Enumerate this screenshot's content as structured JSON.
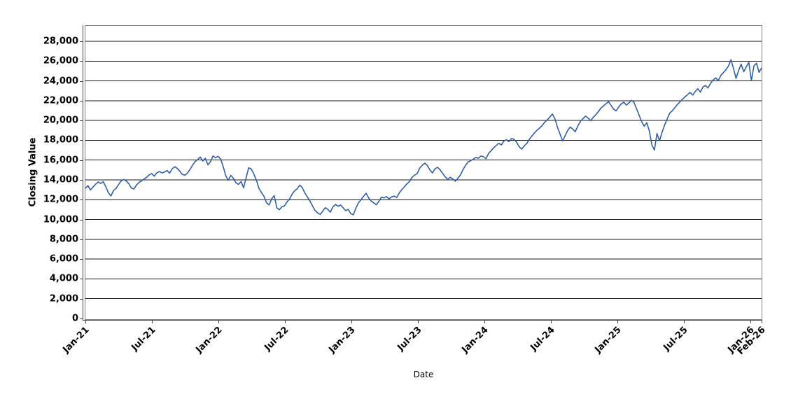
{
  "labels": {
    "x_axis_title": "Date",
    "y_axis_title": "Closing Value"
  },
  "chart_data": {
    "type": "line",
    "title": "",
    "xlabel": "Date",
    "ylabel": "Closing Value",
    "legend": "none",
    "grid": "horizontal",
    "line_color": "#2e5fa6",
    "grid_color": "#1a1a1a",
    "axis_color": "#444444",
    "ylim": [
      0,
      29550
    ],
    "x_range_months": [
      "Jan-21",
      "Feb-26"
    ],
    "x_total_months": 61,
    "y_ticks": [
      {
        "value": 0,
        "label": "0"
      },
      {
        "value": 2000,
        "label": "2,000"
      },
      {
        "value": 4000,
        "label": "4,000"
      },
      {
        "value": 6000,
        "label": "6,000"
      },
      {
        "value": 8000,
        "label": "8,000"
      },
      {
        "value": 10000,
        "label": "10,000"
      },
      {
        "value": 12000,
        "label": "12,000"
      },
      {
        "value": 14000,
        "label": "14,000"
      },
      {
        "value": 16000,
        "label": "16,000"
      },
      {
        "value": 18000,
        "label": "18,000"
      },
      {
        "value": 20000,
        "label": "20,000"
      },
      {
        "value": 22000,
        "label": "22,000"
      },
      {
        "value": 24000,
        "label": "24,000"
      },
      {
        "value": 26000,
        "label": "26,000"
      },
      {
        "value": 28000,
        "label": "28,000"
      }
    ],
    "x_ticks": [
      {
        "month": 0,
        "label": "Jan-21"
      },
      {
        "month": 6,
        "label": "Jul-21"
      },
      {
        "month": 12,
        "label": "Jan-22"
      },
      {
        "month": 18,
        "label": "Jul-22"
      },
      {
        "month": 24,
        "label": "Jan-23"
      },
      {
        "month": 30,
        "label": "Jul-23"
      },
      {
        "month": 36,
        "label": "Jan-24"
      },
      {
        "month": 42,
        "label": "Jul-24"
      },
      {
        "month": 48,
        "label": "Jan-25"
      },
      {
        "month": 54,
        "label": "Jul-25"
      },
      {
        "month": 60,
        "label": "Jan-26"
      },
      {
        "month": 61,
        "label": "Feb-26"
      }
    ],
    "series": [
      {
        "name": "Closing Value",
        "sampling": "weekly",
        "values": [
          13150,
          13420,
          12980,
          13280,
          13560,
          13790,
          13640,
          13820,
          13310,
          12710,
          12380,
          12920,
          13140,
          13540,
          13880,
          14050,
          13900,
          13620,
          13180,
          13080,
          13470,
          13750,
          13900,
          14080,
          14270,
          14500,
          14640,
          14380,
          14720,
          14840,
          14700,
          14790,
          14950,
          14680,
          15100,
          15330,
          15160,
          14880,
          14550,
          14480,
          14690,
          15060,
          15480,
          15850,
          16050,
          16320,
          15900,
          16180,
          15520,
          15830,
          16420,
          16250,
          16380,
          16120,
          15350,
          14430,
          13960,
          14460,
          14170,
          13710,
          13550,
          13840,
          13200,
          14260,
          15220,
          15100,
          14600,
          13980,
          13160,
          12720,
          12340,
          11680,
          11470,
          12090,
          12410,
          11200,
          10980,
          11290,
          11360,
          11780,
          12060,
          12570,
          12900,
          13110,
          13480,
          13220,
          12680,
          12280,
          11870,
          11380,
          10920,
          10680,
          10520,
          10830,
          11190,
          11030,
          10740,
          11280,
          11520,
          11340,
          11460,
          11190,
          10880,
          11020,
          10600,
          10470,
          11150,
          11680,
          11990,
          12340,
          12650,
          12190,
          11860,
          11690,
          11480,
          11830,
          12260,
          12180,
          12310,
          12090,
          12280,
          12360,
          12220,
          12690,
          13010,
          13300,
          13600,
          13830,
          14260,
          14480,
          14620,
          15180,
          15480,
          15700,
          15460,
          15010,
          14700,
          15120,
          15270,
          15030,
          14660,
          14310,
          14050,
          14260,
          14090,
          13870,
          14180,
          14520,
          15040,
          15480,
          15810,
          15940,
          16080,
          16280,
          16180,
          16420,
          16340,
          16150,
          16680,
          16950,
          17240,
          17480,
          17700,
          17530,
          17920,
          18050,
          17860,
          18180,
          18100,
          17790,
          17350,
          17110,
          17440,
          17680,
          18120,
          18440,
          18750,
          19020,
          19250,
          19480,
          19830,
          20060,
          20340,
          20650,
          20180,
          19320,
          18640,
          17930,
          18460,
          18990,
          19340,
          19130,
          18870,
          19450,
          19920,
          20190,
          20440,
          20260,
          19980,
          20310,
          20580,
          20890,
          21240,
          21460,
          21690,
          21900,
          21520,
          21150,
          20980,
          21370,
          21680,
          21850,
          21560,
          21780,
          22040,
          21830,
          21180,
          20540,
          19870,
          19420,
          19780,
          18950,
          17520,
          17010,
          18680,
          17950,
          18820,
          19540,
          20160,
          20750,
          20980,
          21300,
          21620,
          21890,
          22150,
          22380,
          22610,
          22840,
          22560,
          22930,
          23210,
          22870,
          23380,
          23540,
          23290,
          23760,
          24080,
          24310,
          24020,
          24550,
          24830,
          25120,
          25480,
          26140,
          25230,
          24260,
          25060,
          25680,
          24930,
          25420,
          25870,
          24030,
          25520,
          25780,
          24870,
          25310
        ]
      }
    ]
  }
}
